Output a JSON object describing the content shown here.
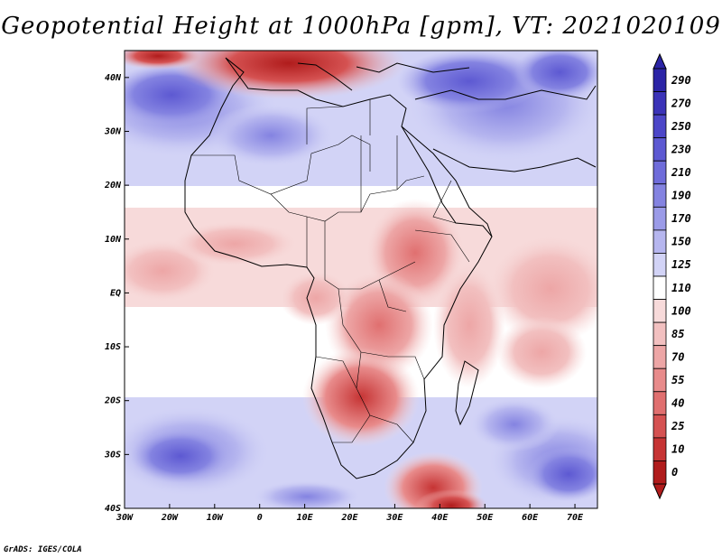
{
  "title": "Geopotential Height at 1000hPa [gpm], VT: 2021020109",
  "credit": "GrADS: IGES/COLA",
  "x_ticks": [
    "30W",
    "20W",
    "10W",
    "0",
    "10E",
    "20E",
    "30E",
    "40E",
    "50E",
    "60E",
    "70E"
  ],
  "y_ticks": [
    "40N",
    "30N",
    "20N",
    "10N",
    "EQ",
    "10S",
    "20S",
    "30S",
    "40S"
  ],
  "colorbar": {
    "labels": [
      "290",
      "270",
      "250",
      "230",
      "210",
      "190",
      "170",
      "150",
      "125",
      "110",
      "100",
      "85",
      "70",
      "55",
      "40",
      "25",
      "10",
      "0"
    ],
    "colors": [
      "#2b24a6",
      "#3b33b8",
      "#4c46c8",
      "#5d59d2",
      "#6f6cda",
      "#8483e1",
      "#9b9be8",
      "#b6b6ef",
      "#d2d3f6",
      "#ffffff",
      "#f7dada",
      "#f2c0c0",
      "#eda6a6",
      "#e88b8b",
      "#e06f6f",
      "#d55252",
      "#c63434",
      "#b01c1c"
    ]
  },
  "map": {
    "projection": "latlon",
    "lon_range": [
      -30,
      75
    ],
    "lat_range": [
      -40,
      45
    ],
    "field": "Geopotential Height at 1000hPa"
  }
}
